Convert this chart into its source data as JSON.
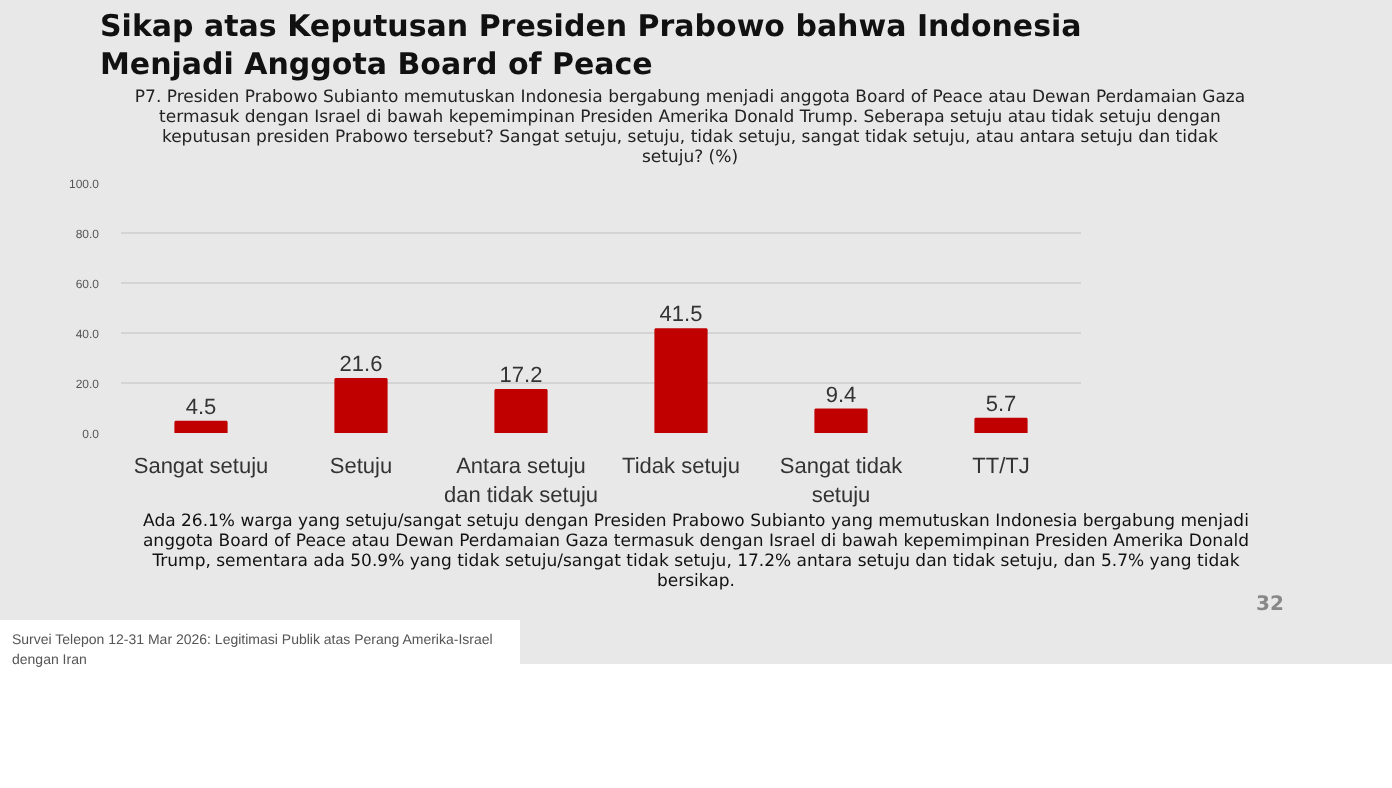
{
  "chart_data": {
    "type": "bar",
    "title": "Sikap atas Keputusan Presiden Prabowo bahwa Indonesia Menjadi Anggota Board of Peace",
    "subtitle": "P7. Presiden Prabowo Subianto memutuskan Indonesia bergabung menjadi anggota Board of Peace atau Dewan Perdamaian Gaza termasuk dengan Israel di bawah kepemimpinan Presiden Amerika Donald Trump. Seberapa setuju atau tidak setuju dengan keputusan presiden Prabowo tersebut? Sangat setuju, setuju, tidak setuju, sangat tidak setuju, atau antara setuju dan tidak setuju? (%)",
    "categories": [
      "Sangat setuju",
      "Setuju",
      "Antara setuju dan tidak setuju",
      "Tidak setuju",
      "Sangat tidak setuju",
      "TT/TJ"
    ],
    "values": [
      4.5,
      21.6,
      17.2,
      41.5,
      9.4,
      5.7
    ],
    "color": "#c00000",
    "ylim": [
      0,
      100
    ],
    "yticks": [
      {
        "value": 0,
        "label": "0.0"
      },
      {
        "value": 20,
        "label": "20.0"
      },
      {
        "value": 40,
        "label": "40.0"
      },
      {
        "value": 60,
        "label": "60.0"
      },
      {
        "value": 80,
        "label": "80.0"
      },
      {
        "value": 100,
        "label": "100.0"
      }
    ],
    "grid": "y",
    "data_labels": true,
    "annotations": [
      "Ada 26.1% warga yang setuju/sangat setuju dengan Presiden Prabowo Subianto yang memutuskan Indonesia bergabung menjadi anggota Board of Peace atau Dewan Perdamaian Gaza termasuk dengan Israel di bawah kepemimpinan Presiden Amerika Donald Trump, sementara ada 50.9% yang tidak setuju/sangat tidak setuju, 17.2% antara setuju dan tidak setuju, dan 5.7% yang tidak bersikap.",
      "Survei Telepon 12-31 Mar 2026: Legitimasi Publik atas Perang Amerika-Israel dengan Iran",
      "32"
    ]
  }
}
